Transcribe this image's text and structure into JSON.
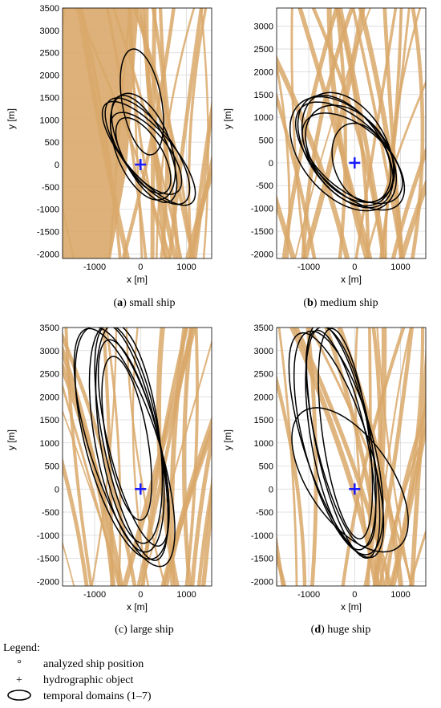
{
  "chart_data": [
    {
      "type": "scatter",
      "caption_letter": "a",
      "caption_text": "small ship",
      "xlabel": "x [m]",
      "ylabel": "y [m]",
      "xlim": [
        -1700,
        1550
      ],
      "ylim": [
        -2100,
        3500
      ],
      "xticks": [
        -1000,
        0,
        1000
      ],
      "yticks": [
        -2000,
        -1500,
        -1000,
        -500,
        0,
        500,
        1000,
        1500,
        2000,
        2500,
        3000,
        3500
      ],
      "grid": true,
      "marker": {
        "x": 0,
        "y": 0
      },
      "domains": [
        {
          "cx": 30,
          "cy": 1400,
          "a": 1200,
          "b": 430,
          "angle_deg": 100
        },
        {
          "cx": 150,
          "cy": 300,
          "a": 1400,
          "b": 550,
          "angle_deg": 125
        },
        {
          "cx": 80,
          "cy": 350,
          "a": 1300,
          "b": 500,
          "angle_deg": 115
        },
        {
          "cx": 180,
          "cy": 250,
          "a": 1450,
          "b": 520,
          "angle_deg": 130
        },
        {
          "cx": 50,
          "cy": 400,
          "a": 1250,
          "b": 600,
          "angle_deg": 110
        },
        {
          "cx": 120,
          "cy": 250,
          "a": 1100,
          "b": 480,
          "angle_deg": 128
        },
        {
          "cx": 60,
          "cy": 200,
          "a": 950,
          "b": 420,
          "angle_deg": 120
        }
      ]
    },
    {
      "type": "scatter",
      "caption_letter": "b",
      "caption_text": "medium ship",
      "xlabel": "x [m]",
      "ylabel": "y [m]",
      "xlim": [
        -1700,
        1550
      ],
      "ylim": [
        -2100,
        3400
      ],
      "xticks": [
        -1000,
        0,
        1000
      ],
      "yticks": [
        -2000,
        -1500,
        -1000,
        -500,
        0,
        500,
        1000,
        1500,
        2000,
        2500,
        3000
      ],
      "grid": true,
      "marker": {
        "x": 0,
        "y": 0
      },
      "domains": [
        {
          "cx": -250,
          "cy": 200,
          "a": 1450,
          "b": 900,
          "angle_deg": 130
        },
        {
          "cx": -200,
          "cy": 250,
          "a": 1400,
          "b": 800,
          "angle_deg": 125
        },
        {
          "cx": -100,
          "cy": 150,
          "a": 1500,
          "b": 750,
          "angle_deg": 135
        },
        {
          "cx": -150,
          "cy": 300,
          "a": 1350,
          "b": 850,
          "angle_deg": 120
        },
        {
          "cx": -50,
          "cy": 100,
          "a": 1300,
          "b": 700,
          "angle_deg": 140
        },
        {
          "cx": -100,
          "cy": 200,
          "a": 1200,
          "b": 800,
          "angle_deg": 128
        },
        {
          "cx": 150,
          "cy": 0,
          "a": 900,
          "b": 600,
          "angle_deg": 110
        }
      ]
    },
    {
      "type": "scatter",
      "caption_letter": "c",
      "caption_text": "large ship",
      "xlabel": "x [m]",
      "ylabel": "y [m]",
      "xlim": [
        -1700,
        1550
      ],
      "ylim": [
        -2100,
        3500
      ],
      "xticks": [
        -1000,
        0,
        1000
      ],
      "yticks": [
        -2000,
        -1500,
        -1000,
        -500,
        0,
        500,
        1000,
        1500,
        2000,
        2500,
        3000,
        3500
      ],
      "grid": true,
      "marker": {
        "x": 0,
        "y": 0
      },
      "domains": [
        {
          "cx": -400,
          "cy": 1000,
          "a": 2600,
          "b": 800,
          "angle_deg": 105
        },
        {
          "cx": -300,
          "cy": 1100,
          "a": 2500,
          "b": 700,
          "angle_deg": 100
        },
        {
          "cx": -200,
          "cy": 1000,
          "a": 2600,
          "b": 600,
          "angle_deg": 102
        },
        {
          "cx": -350,
          "cy": 900,
          "a": 2700,
          "b": 750,
          "angle_deg": 108
        },
        {
          "cx": -250,
          "cy": 1200,
          "a": 2400,
          "b": 650,
          "angle_deg": 98
        },
        {
          "cx": -150,
          "cy": 1000,
          "a": 2300,
          "b": 550,
          "angle_deg": 104
        },
        {
          "cx": -300,
          "cy": 1100,
          "a": 1800,
          "b": 450,
          "angle_deg": 100
        }
      ]
    },
    {
      "type": "scatter",
      "caption_letter": "d",
      "caption_text": "huge ship",
      "xlabel": "x [m]",
      "ylabel": "y [m]",
      "xlim": [
        -1700,
        1550
      ],
      "ylim": [
        -2100,
        3500
      ],
      "xticks": [
        -1000,
        0,
        1000
      ],
      "yticks": [
        -2000,
        -1500,
        -1000,
        -500,
        0,
        500,
        1000,
        1500,
        2000,
        2500,
        3000,
        3500
      ],
      "grid": true,
      "marker": {
        "x": 0,
        "y": 0
      },
      "domains": [
        {
          "cx": -350,
          "cy": 1000,
          "a": 2500,
          "b": 750,
          "angle_deg": 105
        },
        {
          "cx": -300,
          "cy": 1100,
          "a": 2450,
          "b": 650,
          "angle_deg": 100
        },
        {
          "cx": -250,
          "cy": 1050,
          "a": 2600,
          "b": 600,
          "angle_deg": 102
        },
        {
          "cx": -400,
          "cy": 950,
          "a": 2550,
          "b": 700,
          "angle_deg": 108
        },
        {
          "cx": -200,
          "cy": 1200,
          "a": 2300,
          "b": 500,
          "angle_deg": 98
        },
        {
          "cx": -300,
          "cy": 1100,
          "a": 2400,
          "b": 550,
          "angle_deg": 103
        },
        {
          "cx": -100,
          "cy": 200,
          "a": 1800,
          "b": 900,
          "angle_deg": 125
        }
      ]
    }
  ],
  "legend": {
    "title": "Legend:",
    "items": [
      {
        "symbol": "°",
        "label": "analyzed ship position"
      },
      {
        "symbol": "+",
        "label": "hydrographic object"
      },
      {
        "symbol": "ellipse",
        "label": "temporal domains (1–7)"
      }
    ]
  },
  "colors": {
    "points": "#d9a86a",
    "domains": "#000000",
    "marker": "#1a1aff",
    "grid": "#d8d8d8"
  }
}
